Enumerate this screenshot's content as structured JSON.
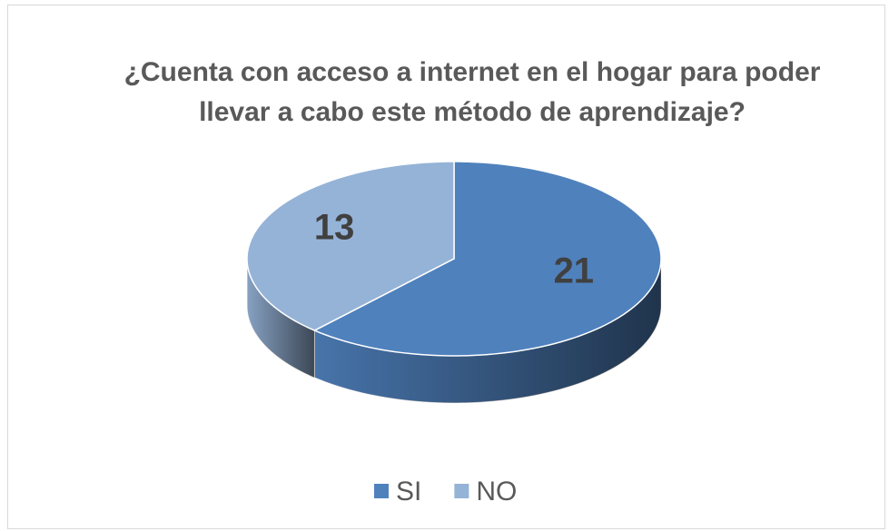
{
  "chart_data": {
    "type": "pie3d",
    "title": "¿Cuenta con acceso a internet en el hogar para poder llevar a cabo este método de aprendizaje?",
    "categories": [
      "SI",
      "NO"
    ],
    "values": [
      21,
      13
    ],
    "colors": [
      "#4f81bd",
      "#95b3d7"
    ],
    "legend": "bottom"
  }
}
